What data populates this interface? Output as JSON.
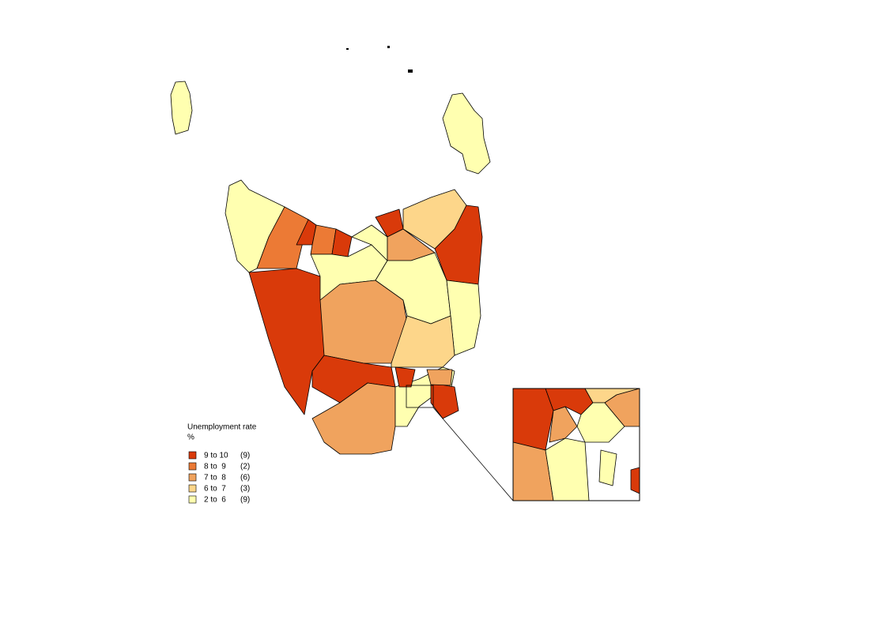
{
  "legend": {
    "title": "Unemployment rate",
    "unit": "%",
    "items": [
      {
        "label": "9 to 10",
        "count": "(9)",
        "color": "#d93a0a"
      },
      {
        "label": "8 to  9",
        "count": "(2)",
        "color": "#ec7a35"
      },
      {
        "label": "7 to  8",
        "count": "(6)",
        "color": "#f0a35e"
      },
      {
        "label": "6 to  7",
        "count": "(3)",
        "color": "#fdd68a"
      },
      {
        "label": "2 to  6",
        "count": "(9)",
        "color": "#ffffb0"
      }
    ]
  }
}
